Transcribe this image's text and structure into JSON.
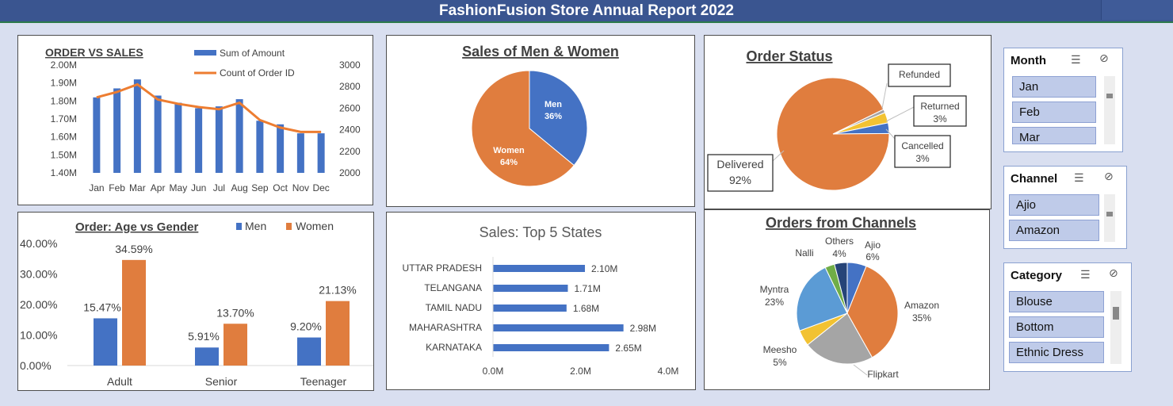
{
  "header": {
    "title": "FashionFusion Store Annual Report 2022"
  },
  "chart_data": [
    {
      "id": "order_vs_sales",
      "type": "bar",
      "title": "ORDER VS SALES",
      "categories": [
        "Jan",
        "Feb",
        "Mar",
        "Apr",
        "May",
        "Jun",
        "Jul",
        "Aug",
        "Sep",
        "Oct",
        "Nov",
        "Dec"
      ],
      "series": [
        {
          "name": "Sum of Amount",
          "axis": "left",
          "type": "bar",
          "values": [
            1.82,
            1.87,
            1.92,
            1.83,
            1.79,
            1.76,
            1.77,
            1.81,
            1.69,
            1.67,
            1.62,
            1.62
          ]
        },
        {
          "name": "Count of Order ID",
          "axis": "right",
          "type": "line",
          "values": [
            2700,
            2750,
            2820,
            2680,
            2640,
            2610,
            2590,
            2650,
            2490,
            2420,
            2380,
            2380
          ]
        }
      ],
      "y_left": {
        "ticks": [
          "1.40M",
          "1.50M",
          "1.60M",
          "1.70M",
          "1.80M",
          "1.90M",
          "2.00M"
        ],
        "ylim": [
          1.4,
          2.0
        ]
      },
      "y_right": {
        "ticks": [
          "2000",
          "2200",
          "2400",
          "2600",
          "2800",
          "3000"
        ],
        "ylim": [
          2000,
          3000
        ]
      },
      "colors": {
        "bar": "#4472c4",
        "line": "#ed7d31"
      }
    },
    {
      "id": "sales_men_women",
      "type": "pie",
      "title": "Sales of Men & Women",
      "labels": [
        "Men",
        "Women"
      ],
      "values": [
        36,
        64
      ],
      "value_labels": [
        "36%",
        "64%"
      ],
      "colors": [
        "#4472c4",
        "#e07d3e"
      ]
    },
    {
      "id": "order_status",
      "type": "pie",
      "title": "Order Status",
      "labels": [
        "Delivered",
        "Refunded",
        "Returned",
        "Cancelled"
      ],
      "values": [
        92,
        1,
        3,
        3
      ],
      "value_labels": [
        "92%",
        "",
        "3%",
        "3%"
      ],
      "colors": [
        "#e07d3e",
        "#a5a5a5",
        "#f2c232",
        "#4472c4"
      ]
    },
    {
      "id": "age_vs_gender",
      "type": "bar",
      "title": "Order: Age vs Gender",
      "categories": [
        "Adult",
        "Senior",
        "Teenager"
      ],
      "series": [
        {
          "name": "Men",
          "values": [
            15.47,
            5.91,
            9.2
          ],
          "labels": [
            "15.47%",
            "5.91%",
            "9.20%"
          ]
        },
        {
          "name": "Women",
          "values": [
            34.59,
            13.7,
            21.13
          ],
          "labels": [
            "34.59%",
            "13.70%",
            "21.13%"
          ]
        }
      ],
      "y_ticks": [
        "0.00%",
        "10.00%",
        "20.00%",
        "30.00%",
        "40.00%"
      ],
      "ylim": [
        0,
        40
      ],
      "legend": "top",
      "colors": [
        "#4472c4",
        "#e07d3e"
      ]
    },
    {
      "id": "top5_states",
      "type": "bar",
      "orientation": "horizontal",
      "title": "Sales: Top 5 States",
      "categories": [
        "UTTAR PRADESH",
        "TELANGANA",
        "TAMIL NADU",
        "MAHARASHTRA",
        "KARNATAKA"
      ],
      "values": [
        2.1,
        1.71,
        1.68,
        2.98,
        2.65
      ],
      "value_labels": [
        "2.10M",
        "1.71M",
        "1.68M",
        "2.98M",
        "2.65M"
      ],
      "x_ticks": [
        "0.0M",
        "2.0M",
        "4.0M"
      ],
      "xlim": [
        0,
        4
      ],
      "colors": {
        "bar": "#4472c4"
      }
    },
    {
      "id": "orders_channels",
      "type": "pie",
      "title": "Orders from Channels",
      "labels": [
        "Ajio",
        "Amazon",
        "Flipkart",
        "Meesho",
        "Myntra",
        "Nalli",
        "Others"
      ],
      "values": [
        6,
        35,
        22,
        5,
        23,
        3,
        4
      ],
      "value_labels": [
        "6%",
        "35%",
        "",
        "5%",
        "23%",
        "",
        "4%"
      ],
      "colors": [
        "#4472c4",
        "#e07d3e",
        "#a5a5a5",
        "#f2c232",
        "#5b9bd5",
        "#70ad47",
        "#264478"
      ]
    }
  ],
  "slicers": [
    {
      "title": "Month",
      "items": [
        "Jan",
        "Feb",
        "Mar"
      ]
    },
    {
      "title": "Channel",
      "items": [
        "Ajio",
        "Amazon"
      ]
    },
    {
      "title": "Category",
      "items": [
        "Blouse",
        "Bottom",
        "Ethnic Dress"
      ]
    }
  ],
  "icons": {
    "multi_select": "☰",
    "clear_filter": "⊘"
  }
}
